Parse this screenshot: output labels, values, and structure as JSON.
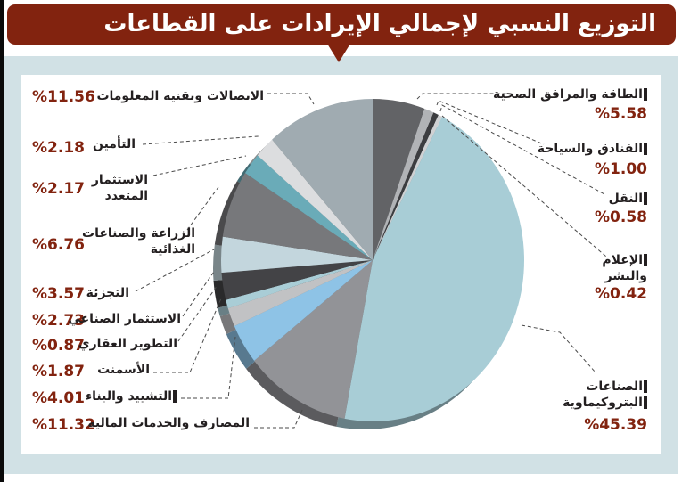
{
  "title": "التوزيع النسبي لإجمالي الإيرادات على القطاعات",
  "chart_data": {
    "type": "pie",
    "title": "التوزيع النسبي لإجمالي الإيرادات على القطاعات",
    "unit": "%",
    "start_angle": "12 o'clock",
    "direction": "clockwise",
    "slices": [
      {
        "label": "الطاقة والمرافق الصحية",
        "value": 5.58,
        "display": "%5.58",
        "color": "#626366"
      },
      {
        "label": "الفنادق والسياحة",
        "value": 1.0,
        "display": "%1.00",
        "color": "#b1b3b6"
      },
      {
        "label": "النقل",
        "value": 0.58,
        "display": "%0.58",
        "color": "#3c3d40"
      },
      {
        "label": "الإعلام والنشر",
        "value": 0.42,
        "display": "%0.42",
        "color": "#cfd1d3"
      },
      {
        "label": "الصناعات البتروكيماوية",
        "value": 45.39,
        "display": "%45.39",
        "color": "#a8cdd6"
      },
      {
        "label": "المصارف والخدمات المالية",
        "value": 11.32,
        "display": "%11.32",
        "color": "#929397"
      },
      {
        "label": "التشييد والبناء",
        "value": 4.01,
        "display": "%4.01",
        "color": "#8ec3e6"
      },
      {
        "label": "الأسمنت",
        "value": 1.87,
        "display": "%1.87",
        "color": "#c1c2c4"
      },
      {
        "label": "التطوير العقاري",
        "value": 0.87,
        "display": "%0.87",
        "color": "#a9cdd6"
      },
      {
        "label": "الاستثمار الصناعي",
        "value": 2.73,
        "display": "%2.73",
        "color": "#434346"
      },
      {
        "label": "التجزئة",
        "value": 3.57,
        "display": "%3.57",
        "color": "#c3d6dd"
      },
      {
        "label": "الزراعة والصناعات الغذائية",
        "value": 6.76,
        "display": "%6.76",
        "color": "#77787b"
      },
      {
        "label": "الاستثمار المتعدد",
        "value": 2.17,
        "display": "%2.17",
        "color": "#6aabb8"
      },
      {
        "label": "التأمين",
        "value": 2.18,
        "display": "%2.18",
        "color": "#dcdddf"
      },
      {
        "label": "الاتصالات وتقنية المعلومات",
        "value": 11.56,
        "display": "%11.56",
        "color": "#a0abb1"
      }
    ]
  },
  "labels": {
    "energy": {
      "name": "الطاقة والمرافق الصحية",
      "pct": "%5.58"
    },
    "hotels": {
      "name": "الفنادق والسياحة",
      "pct": "%1.00"
    },
    "transport": {
      "name": "النقل",
      "pct": "%0.58"
    },
    "media": {
      "line1": "الإعلام",
      "line2": "والنشر",
      "pct": "%0.42"
    },
    "petro": {
      "line1": "الصناعات",
      "line2": "البتروكيماوية",
      "pct": "%45.39"
    },
    "telecom": {
      "name": "الاتصالات وتقنية المعلومات",
      "pct": "%11.56"
    },
    "insurance": {
      "name": "التأمين",
      "pct": "%2.18"
    },
    "multi": {
      "line1": "الاستثمار",
      "line2": "المتعدد",
      "pct": "%2.17"
    },
    "agri": {
      "line1": "الزراعة والصناعات",
      "line2": "الغذائية",
      "pct": "%6.76"
    },
    "retail": {
      "name": "التجزئة",
      "pct": "%3.57"
    },
    "industrial": {
      "name": "الاستثمار الصناعي",
      "pct": "%2.73"
    },
    "realestate": {
      "name": "التطوير العقاري",
      "pct": "%0.87"
    },
    "cement": {
      "name": "الأسمنت",
      "pct": "%1.87"
    },
    "construction": {
      "name": "التشييد والبناء",
      "pct": "%4.01"
    },
    "banks": {
      "name": "المصارف والخدمات المالية",
      "pct": "%11.32"
    }
  },
  "colors": {
    "title_bg": "#82230f",
    "panel_bg": "#d1e1e5",
    "pct_text": "#82230f"
  }
}
